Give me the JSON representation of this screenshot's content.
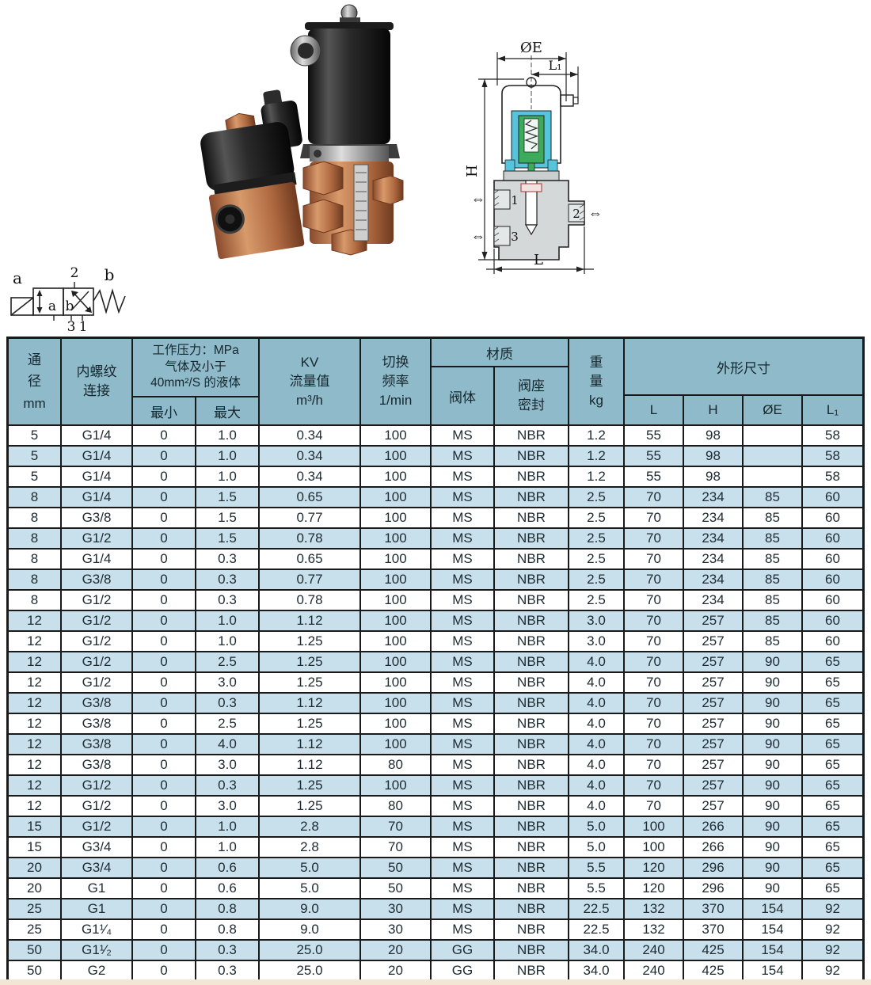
{
  "table": {
    "headers": {
      "diameter": "通\n径\nmm",
      "thread": "内螺纹\n连接",
      "pressure_title": "工作压力：MPa\n气体及小于\n40mm²/S 的液体",
      "pressure_min": "最小",
      "pressure_max": "最大",
      "kv": "KV\n流量值\nm³/h",
      "frequency": "切换\n频率\n1/min",
      "material": "材质",
      "material_body": "阀体",
      "material_seal": "阀座\n密封",
      "weight": "重\n量\nkg",
      "dimensions": "外形尺寸",
      "dim_l": "L",
      "dim_h": "H",
      "dim_oe": "ØE",
      "dim_l1": "L₁"
    },
    "rows": [
      [
        "5",
        "G1/4",
        "0",
        "1.0",
        "0.34",
        "100",
        "MS",
        "NBR",
        "1.2",
        "55",
        "98",
        "",
        "58"
      ],
      [
        "5",
        "G1/4",
        "0",
        "1.0",
        "0.34",
        "100",
        "MS",
        "NBR",
        "1.2",
        "55",
        "98",
        "",
        "58"
      ],
      [
        "5",
        "G1/4",
        "0",
        "1.0",
        "0.34",
        "100",
        "MS",
        "NBR",
        "1.2",
        "55",
        "98",
        "",
        "58"
      ],
      [
        "8",
        "G1/4",
        "0",
        "1.5",
        "0.65",
        "100",
        "MS",
        "NBR",
        "2.5",
        "70",
        "234",
        "85",
        "60"
      ],
      [
        "8",
        "G3/8",
        "0",
        "1.5",
        "0.77",
        "100",
        "MS",
        "NBR",
        "2.5",
        "70",
        "234",
        "85",
        "60"
      ],
      [
        "8",
        "G1/2",
        "0",
        "1.5",
        "0.78",
        "100",
        "MS",
        "NBR",
        "2.5",
        "70",
        "234",
        "85",
        "60"
      ],
      [
        "8",
        "G1/4",
        "0",
        "0.3",
        "0.65",
        "100",
        "MS",
        "NBR",
        "2.5",
        "70",
        "234",
        "85",
        "60"
      ],
      [
        "8",
        "G3/8",
        "0",
        "0.3",
        "0.77",
        "100",
        "MS",
        "NBR",
        "2.5",
        "70",
        "234",
        "85",
        "60"
      ],
      [
        "8",
        "G1/2",
        "0",
        "0.3",
        "0.78",
        "100",
        "MS",
        "NBR",
        "2.5",
        "70",
        "234",
        "85",
        "60"
      ],
      [
        "12",
        "G1/2",
        "0",
        "1.0",
        "1.12",
        "100",
        "MS",
        "NBR",
        "3.0",
        "70",
        "257",
        "85",
        "60"
      ],
      [
        "12",
        "G1/2",
        "0",
        "1.0",
        "1.25",
        "100",
        "MS",
        "NBR",
        "3.0",
        "70",
        "257",
        "85",
        "60"
      ],
      [
        "12",
        "G1/2",
        "0",
        "2.5",
        "1.25",
        "100",
        "MS",
        "NBR",
        "4.0",
        "70",
        "257",
        "90",
        "65"
      ],
      [
        "12",
        "G1/2",
        "0",
        "3.0",
        "1.25",
        "100",
        "MS",
        "NBR",
        "4.0",
        "70",
        "257",
        "90",
        "65"
      ],
      [
        "12",
        "G3/8",
        "0",
        "0.3",
        "1.12",
        "100",
        "MS",
        "NBR",
        "4.0",
        "70",
        "257",
        "90",
        "65"
      ],
      [
        "12",
        "G3/8",
        "0",
        "2.5",
        "1.25",
        "100",
        "MS",
        "NBR",
        "4.0",
        "70",
        "257",
        "90",
        "65"
      ],
      [
        "12",
        "G3/8",
        "0",
        "4.0",
        "1.12",
        "100",
        "MS",
        "NBR",
        "4.0",
        "70",
        "257",
        "90",
        "65"
      ],
      [
        "12",
        "G3/8",
        "0",
        "3.0",
        "1.12",
        "80",
        "MS",
        "NBR",
        "4.0",
        "70",
        "257",
        "90",
        "65"
      ],
      [
        "12",
        "G1/2",
        "0",
        "0.3",
        "1.25",
        "100",
        "MS",
        "NBR",
        "4.0",
        "70",
        "257",
        "90",
        "65"
      ],
      [
        "12",
        "G1/2",
        "0",
        "3.0",
        "1.25",
        "80",
        "MS",
        "NBR",
        "4.0",
        "70",
        "257",
        "90",
        "65"
      ],
      [
        "15",
        "G1/2",
        "0",
        "1.0",
        "2.8",
        "70",
        "MS",
        "NBR",
        "5.0",
        "100",
        "266",
        "90",
        "65"
      ],
      [
        "15",
        "G3/4",
        "0",
        "1.0",
        "2.8",
        "70",
        "MS",
        "NBR",
        "5.0",
        "100",
        "266",
        "90",
        "65"
      ],
      [
        "20",
        "G3/4",
        "0",
        "0.6",
        "5.0",
        "50",
        "MS",
        "NBR",
        "5.5",
        "120",
        "296",
        "90",
        "65"
      ],
      [
        "20",
        "G1",
        "0",
        "0.6",
        "5.0",
        "50",
        "MS",
        "NBR",
        "5.5",
        "120",
        "296",
        "90",
        "65"
      ],
      [
        "25",
        "G1",
        "0",
        "0.8",
        "9.0",
        "30",
        "MS",
        "NBR",
        "22.5",
        "132",
        "370",
        "154",
        "92"
      ],
      [
        "25",
        "G1¹⁄₄",
        "0",
        "0.8",
        "9.0",
        "30",
        "MS",
        "NBR",
        "22.5",
        "132",
        "370",
        "154",
        "92"
      ],
      [
        "50",
        "G1¹⁄₂",
        "0",
        "0.3",
        "25.0",
        "20",
        "GG",
        "NBR",
        "34.0",
        "240",
        "425",
        "154",
        "92"
      ],
      [
        "50",
        "G2",
        "0",
        "0.3",
        "25.0",
        "20",
        "GG",
        "NBR",
        "34.0",
        "240",
        "425",
        "154",
        "92"
      ]
    ]
  },
  "diagram": {
    "dim_oe": "ØE",
    "dim_l1": "L₁",
    "dim_h": "H",
    "dim_l": "L",
    "port1": "1",
    "port2": "2",
    "port3": "3",
    "flow_arrow": "⇔"
  },
  "schematic": {
    "actuator_label": "a",
    "spring_label": "b",
    "pos_a": "a",
    "pos_b": "b",
    "port_top": "2",
    "port_bottom_left": "3",
    "port_bottom_right": "1"
  },
  "colors": {
    "header_bg": "#8fbac9",
    "stripe_bg": "#c8dfec",
    "grid_line": "#1a1a1a",
    "coil_cyan": "#57c4de",
    "core_green": "#3cab5c",
    "body_gray": "#d5d8d8",
    "copper": "#c07b52"
  }
}
